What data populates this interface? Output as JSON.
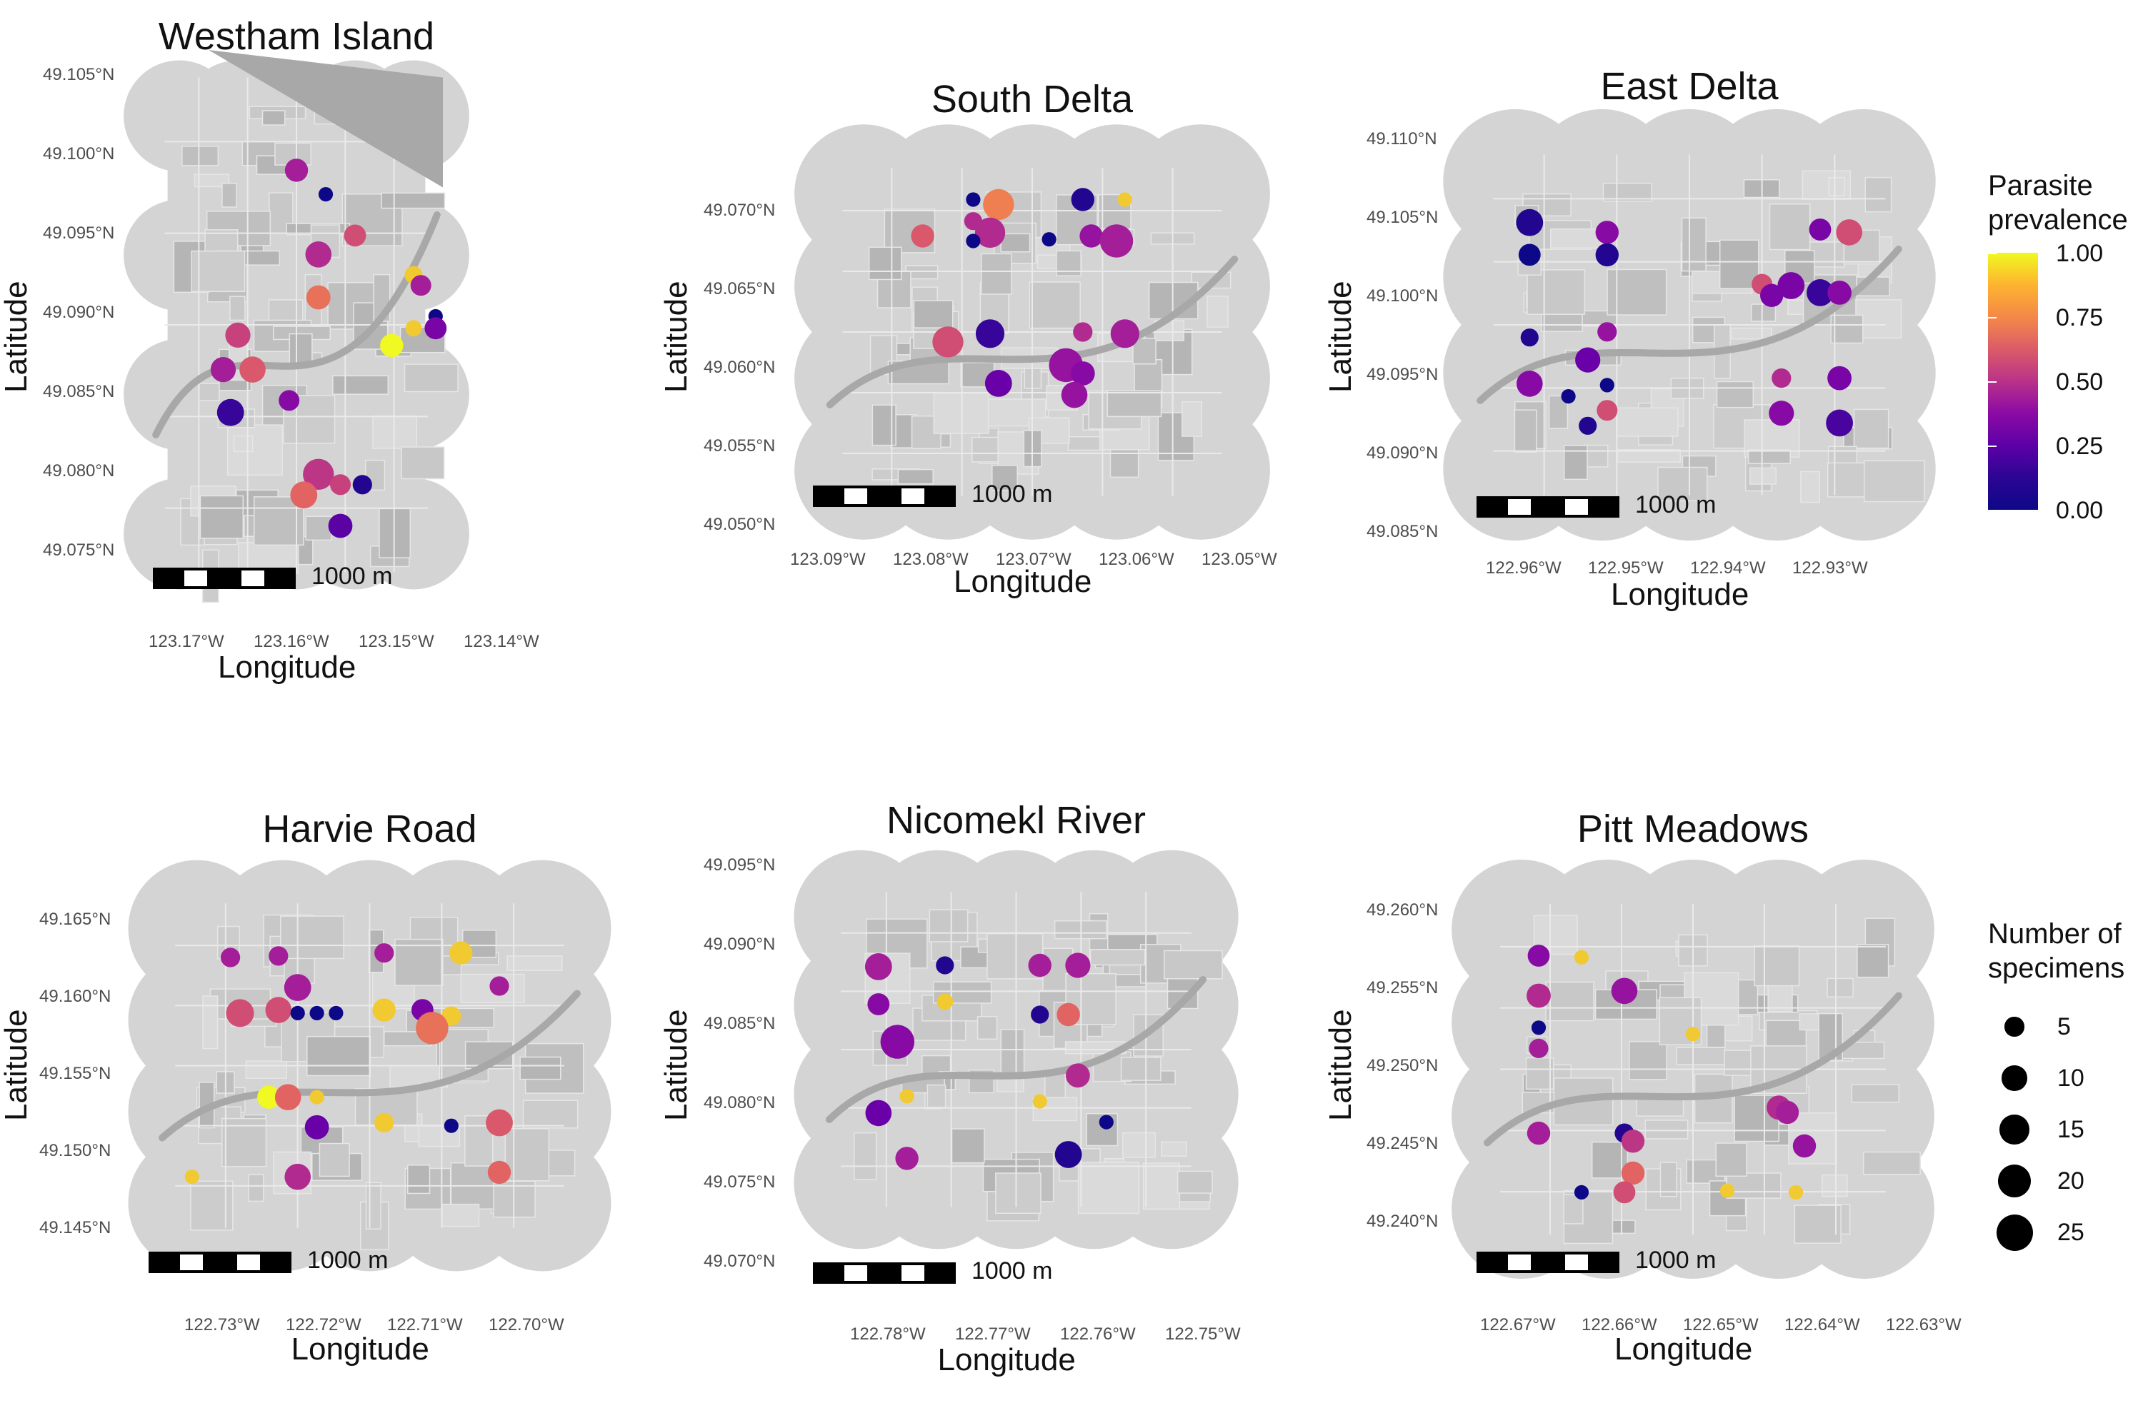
{
  "figure": {
    "legend": {
      "color_title": "Parasite\nprevalence",
      "color_ticks": [
        "1.00",
        "0.75",
        "0.50",
        "0.25",
        "0.00"
      ],
      "size_title": "Number of\nspecimens",
      "size_ticks": [
        "5",
        "10",
        "15",
        "20",
        "25"
      ]
    },
    "axis_labels": {
      "x": "Longitude",
      "y": "Latitude"
    },
    "scale_label": "1000 m",
    "colors": {
      "background": "#ffffff",
      "map_land": "#d4d4d4",
      "map_dark": "#a8a8a8",
      "map_field": "#c2c2c2"
    }
  },
  "chart_data": [
    {
      "type": "scatter",
      "title": "Westham Island",
      "xlabel": "Longitude",
      "ylabel": "Latitude",
      "xticks": [
        "123.17°W",
        "123.16°W",
        "123.15°W",
        "123.14°W"
      ],
      "yticks": [
        "49.105°N",
        "49.100°N",
        "49.095°N",
        "49.090°N",
        "49.085°N",
        "49.080°N",
        "49.075°N"
      ],
      "xlim": [
        -123.175,
        -123.135
      ],
      "ylim": [
        49.0745,
        49.1065
      ],
      "scale_label": "1000 m",
      "points": [
        {
          "lon": -123.155,
          "lat": 49.0995,
          "n": 8,
          "prev": 0.45
        },
        {
          "lon": -123.151,
          "lat": 49.0981,
          "n": 2,
          "prev": 0.0
        },
        {
          "lon": -123.152,
          "lat": 49.0946,
          "n": 11,
          "prev": 0.5
        },
        {
          "lon": -123.147,
          "lat": 49.0957,
          "n": 7,
          "prev": 0.65
        },
        {
          "lon": -123.152,
          "lat": 49.0921,
          "n": 9,
          "prev": 0.8
        },
        {
          "lon": -123.139,
          "lat": 49.0934,
          "n": 4,
          "prev": 0.95
        },
        {
          "lon": -123.138,
          "lat": 49.0928,
          "n": 6,
          "prev": 0.45
        },
        {
          "lon": -123.136,
          "lat": 49.091,
          "n": 2,
          "prev": 0.0
        },
        {
          "lon": -123.139,
          "lat": 49.0903,
          "n": 3,
          "prev": 0.95
        },
        {
          "lon": -123.136,
          "lat": 49.0903,
          "n": 7,
          "prev": 0.3
        },
        {
          "lon": -123.142,
          "lat": 49.0893,
          "n": 8,
          "prev": 1.0
        },
        {
          "lon": -123.163,
          "lat": 49.0899,
          "n": 10,
          "prev": 0.6
        },
        {
          "lon": -123.161,
          "lat": 49.0879,
          "n": 11,
          "prev": 0.7
        },
        {
          "lon": -123.165,
          "lat": 49.0879,
          "n": 10,
          "prev": 0.45
        },
        {
          "lon": -123.164,
          "lat": 49.0854,
          "n": 12,
          "prev": 0.1
        },
        {
          "lon": -123.156,
          "lat": 49.0861,
          "n": 6,
          "prev": 0.35
        },
        {
          "lon": -123.152,
          "lat": 49.0818,
          "n": 17,
          "prev": 0.55
        },
        {
          "lon": -123.149,
          "lat": 49.0812,
          "n": 6,
          "prev": 0.6
        },
        {
          "lon": -123.146,
          "lat": 49.0812,
          "n": 5,
          "prev": 0.05
        },
        {
          "lon": -123.154,
          "lat": 49.0806,
          "n": 12,
          "prev": 0.75
        },
        {
          "lon": -123.149,
          "lat": 49.0788,
          "n": 9,
          "prev": 0.2
        }
      ]
    },
    {
      "type": "scatter",
      "title": "South Delta",
      "xlabel": "Longitude",
      "ylabel": "Latitude",
      "xticks": [
        "123.09°W",
        "123.08°W",
        "123.07°W",
        "123.06°W",
        "123.05°W"
      ],
      "yticks": [
        "49.070°N",
        "49.065°N",
        "49.060°N",
        "49.055°N",
        "49.050°N"
      ],
      "xlim": [
        -123.095,
        -123.045
      ],
      "ylim": [
        49.0495,
        49.0715
      ],
      "scale_label": "1000 m",
      "points": [
        {
          "lon": -123.077,
          "lat": 49.0685,
          "n": 2,
          "prev": 0.0
        },
        {
          "lon": -123.074,
          "lat": 49.0682,
          "n": 17,
          "prev": 0.85
        },
        {
          "lon": -123.064,
          "lat": 49.0685,
          "n": 8,
          "prev": 0.05
        },
        {
          "lon": -123.059,
          "lat": 49.0685,
          "n": 2,
          "prev": 0.95
        },
        {
          "lon": -123.077,
          "lat": 49.0672,
          "n": 4,
          "prev": 0.5
        },
        {
          "lon": -123.075,
          "lat": 49.0665,
          "n": 16,
          "prev": 0.5
        },
        {
          "lon": -123.083,
          "lat": 49.0663,
          "n": 8,
          "prev": 0.7
        },
        {
          "lon": -123.077,
          "lat": 49.066,
          "n": 2,
          "prev": 0.0
        },
        {
          "lon": -123.068,
          "lat": 49.0661,
          "n": 2,
          "prev": 0.0
        },
        {
          "lon": -123.063,
          "lat": 49.0663,
          "n": 8,
          "prev": 0.4
        },
        {
          "lon": -123.06,
          "lat": 49.066,
          "n": 20,
          "prev": 0.45
        },
        {
          "lon": -123.08,
          "lat": 49.0599,
          "n": 17,
          "prev": 0.65
        },
        {
          "lon": -123.075,
          "lat": 49.0604,
          "n": 14,
          "prev": 0.1
        },
        {
          "lon": -123.064,
          "lat": 49.0605,
          "n": 5,
          "prev": 0.5
        },
        {
          "lon": -123.059,
          "lat": 49.0604,
          "n": 14,
          "prev": 0.45
        },
        {
          "lon": -123.066,
          "lat": 49.0585,
          "n": 21,
          "prev": 0.4
        },
        {
          "lon": -123.064,
          "lat": 49.058,
          "n": 9,
          "prev": 0.35
        },
        {
          "lon": -123.074,
          "lat": 49.0574,
          "n": 12,
          "prev": 0.25
        },
        {
          "lon": -123.065,
          "lat": 49.0567,
          "n": 11,
          "prev": 0.4
        }
      ]
    },
    {
      "type": "scatter",
      "title": "East Delta",
      "xlabel": "Longitude",
      "ylabel": "Latitude",
      "xticks": [
        "122.96°W",
        "122.95°W",
        "122.94°W",
        "122.93°W"
      ],
      "yticks": [
        "49.110°N",
        "49.105°N",
        "49.100°N",
        "49.095°N",
        "49.090°N",
        "49.085°N"
      ],
      "xlim": [
        -122.967,
        -122.922
      ],
      "ylim": [
        49.0845,
        49.1115
      ],
      "scale_label": "1000 m",
      "points": [
        {
          "lon": -122.961,
          "lat": 49.1053,
          "n": 12,
          "prev": 0.05
        },
        {
          "lon": -122.953,
          "lat": 49.1046,
          "n": 8,
          "prev": 0.35
        },
        {
          "lon": -122.931,
          "lat": 49.1048,
          "n": 7,
          "prev": 0.3
        },
        {
          "lon": -122.928,
          "lat": 49.1046,
          "n": 11,
          "prev": 0.65
        },
        {
          "lon": -122.961,
          "lat": 49.103,
          "n": 7,
          "prev": 0.0
        },
        {
          "lon": -122.953,
          "lat": 49.103,
          "n": 8,
          "prev": 0.05
        },
        {
          "lon": -122.937,
          "lat": 49.1009,
          "n": 6,
          "prev": 0.65
        },
        {
          "lon": -122.936,
          "lat": 49.1001,
          "n": 8,
          "prev": 0.3
        },
        {
          "lon": -122.934,
          "lat": 49.1008,
          "n": 12,
          "prev": 0.3
        },
        {
          "lon": -122.931,
          "lat": 49.1003,
          "n": 12,
          "prev": 0.1
        },
        {
          "lon": -122.929,
          "lat": 49.1003,
          "n": 9,
          "prev": 0.35
        },
        {
          "lon": -122.961,
          "lat": 49.0971,
          "n": 4,
          "prev": 0.05
        },
        {
          "lon": -122.953,
          "lat": 49.0975,
          "n": 5,
          "prev": 0.4
        },
        {
          "lon": -122.955,
          "lat": 49.0955,
          "n": 10,
          "prev": 0.25
        },
        {
          "lon": -122.935,
          "lat": 49.0942,
          "n": 5,
          "prev": 0.5
        },
        {
          "lon": -122.929,
          "lat": 49.0942,
          "n": 9,
          "prev": 0.3
        },
        {
          "lon": -122.961,
          "lat": 49.0938,
          "n": 11,
          "prev": 0.35
        },
        {
          "lon": -122.953,
          "lat": 49.0937,
          "n": 2,
          "prev": 0.0
        },
        {
          "lon": -122.957,
          "lat": 49.0929,
          "n": 2,
          "prev": 0.0
        },
        {
          "lon": -122.953,
          "lat": 49.0919,
          "n": 6,
          "prev": 0.65
        },
        {
          "lon": -122.935,
          "lat": 49.0917,
          "n": 10,
          "prev": 0.35
        },
        {
          "lon": -122.929,
          "lat": 49.091,
          "n": 12,
          "prev": 0.15
        },
        {
          "lon": -122.955,
          "lat": 49.0908,
          "n": 4,
          "prev": 0.05
        }
      ]
    },
    {
      "type": "scatter",
      "title": "Harvie Road",
      "xlabel": "Longitude",
      "ylabel": "Latitude",
      "xticks": [
        "122.73°W",
        "122.72°W",
        "122.71°W",
        "122.70°W"
      ],
      "yticks": [
        "49.165°N",
        "49.160°N",
        "49.155°N",
        "49.150°N",
        "49.145°N"
      ],
      "xlim": [
        -122.737,
        -122.692
      ],
      "ylim": [
        49.1435,
        49.1675
      ],
      "scale_label": "1000 m",
      "points": [
        {
          "lon": -122.729,
          "lat": 49.1627,
          "n": 5,
          "prev": 0.45
        },
        {
          "lon": -122.724,
          "lat": 49.1628,
          "n": 5,
          "prev": 0.45
        },
        {
          "lon": -122.713,
          "lat": 49.163,
          "n": 5,
          "prev": 0.45
        },
        {
          "lon": -122.705,
          "lat": 49.163,
          "n": 8,
          "prev": 0.95
        },
        {
          "lon": -122.701,
          "lat": 49.1608,
          "n": 5,
          "prev": 0.45
        },
        {
          "lon": -122.722,
          "lat": 49.1607,
          "n": 12,
          "prev": 0.45
        },
        {
          "lon": -122.728,
          "lat": 49.159,
          "n": 13,
          "prev": 0.65
        },
        {
          "lon": -122.724,
          "lat": 49.1592,
          "n": 11,
          "prev": 0.65
        },
        {
          "lon": -122.722,
          "lat": 49.159,
          "n": 2,
          "prev": 0.0
        },
        {
          "lon": -122.72,
          "lat": 49.159,
          "n": 2,
          "prev": 0.0
        },
        {
          "lon": -122.718,
          "lat": 49.159,
          "n": 2,
          "prev": 0.0
        },
        {
          "lon": -122.713,
          "lat": 49.1592,
          "n": 8,
          "prev": 0.95
        },
        {
          "lon": -122.709,
          "lat": 49.1592,
          "n": 7,
          "prev": 0.3
        },
        {
          "lon": -122.706,
          "lat": 49.1588,
          "n": 5,
          "prev": 0.95
        },
        {
          "lon": -122.708,
          "lat": 49.158,
          "n": 19,
          "prev": 0.8
        },
        {
          "lon": -122.725,
          "lat": 49.1534,
          "n": 8,
          "prev": 1.0
        },
        {
          "lon": -122.723,
          "lat": 49.1534,
          "n": 11,
          "prev": 0.75
        },
        {
          "lon": -122.72,
          "lat": 49.1534,
          "n": 2,
          "prev": 0.95
        },
        {
          "lon": -122.72,
          "lat": 49.1514,
          "n": 9,
          "prev": 0.25
        },
        {
          "lon": -122.713,
          "lat": 49.1517,
          "n": 5,
          "prev": 0.95
        },
        {
          "lon": -122.706,
          "lat": 49.1515,
          "n": 2,
          "prev": 0.0
        },
        {
          "lon": -122.701,
          "lat": 49.1517,
          "n": 12,
          "prev": 0.7
        },
        {
          "lon": -122.733,
          "lat": 49.1481,
          "n": 2,
          "prev": 0.95
        },
        {
          "lon": -122.722,
          "lat": 49.1481,
          "n": 11,
          "prev": 0.5
        },
        {
          "lon": -122.701,
          "lat": 49.1484,
          "n": 8,
          "prev": 0.75
        }
      ]
    },
    {
      "type": "scatter",
      "title": "Nicomekl River",
      "xlabel": "Longitude",
      "ylabel": "Latitude",
      "xticks": [
        "122.78°W",
        "122.77°W",
        "122.76°W",
        "122.75°W"
      ],
      "yticks": [
        "49.095°N",
        "49.090°N",
        "49.085°N",
        "49.080°N",
        "49.075°N",
        "49.070°N"
      ],
      "xlim": [
        -122.787,
        -122.746
      ],
      "ylim": [
        49.0695,
        49.0965
      ],
      "scale_label": "1000 m",
      "points": [
        {
          "lon": -122.781,
          "lat": 49.0894,
          "n": 12,
          "prev": 0.45
        },
        {
          "lon": -122.774,
          "lat": 49.0895,
          "n": 4,
          "prev": 0.05
        },
        {
          "lon": -122.764,
          "lat": 49.0895,
          "n": 8,
          "prev": 0.45
        },
        {
          "lon": -122.76,
          "lat": 49.0895,
          "n": 10,
          "prev": 0.45
        },
        {
          "lon": -122.781,
          "lat": 49.0865,
          "n": 7,
          "prev": 0.35
        },
        {
          "lon": -122.774,
          "lat": 49.0867,
          "n": 3,
          "prev": 0.95
        },
        {
          "lon": -122.764,
          "lat": 49.0857,
          "n": 4,
          "prev": 0.05
        },
        {
          "lon": -122.761,
          "lat": 49.0857,
          "n": 8,
          "prev": 0.75
        },
        {
          "lon": -122.779,
          "lat": 49.0836,
          "n": 21,
          "prev": 0.35
        },
        {
          "lon": -122.76,
          "lat": 49.081,
          "n": 9,
          "prev": 0.5
        },
        {
          "lon": -122.778,
          "lat": 49.0794,
          "n": 2,
          "prev": 0.95
        },
        {
          "lon": -122.781,
          "lat": 49.0781,
          "n": 11,
          "prev": 0.25
        },
        {
          "lon": -122.764,
          "lat": 49.079,
          "n": 2,
          "prev": 0.95
        },
        {
          "lon": -122.757,
          "lat": 49.0774,
          "n": 2,
          "prev": 0.0
        },
        {
          "lon": -122.778,
          "lat": 49.0746,
          "n": 8,
          "prev": 0.45
        },
        {
          "lon": -122.761,
          "lat": 49.0749,
          "n": 12,
          "prev": 0.05
        }
      ]
    },
    {
      "type": "scatter",
      "title": "Pitt Meadows",
      "xlabel": "Longitude",
      "ylabel": "Latitude",
      "xticks": [
        "122.67°W",
        "122.66°W",
        "122.65°W",
        "122.64°W",
        "122.63°W"
      ],
      "yticks": [
        "49.260°N",
        "49.255°N",
        "49.250°N",
        "49.245°N",
        "49.240°N"
      ],
      "xlim": [
        -122.675,
        -122.625
      ],
      "ylim": [
        49.2385,
        49.2615
      ],
      "scale_label": "1000 m",
      "points": [
        {
          "lon": -122.668,
          "lat": 49.2571,
          "n": 7,
          "prev": 0.35
        },
        {
          "lon": -122.663,
          "lat": 49.257,
          "n": 2,
          "prev": 0.95
        },
        {
          "lon": -122.658,
          "lat": 49.2549,
          "n": 11,
          "prev": 0.4
        },
        {
          "lon": -122.668,
          "lat": 49.2546,
          "n": 9,
          "prev": 0.5
        },
        {
          "lon": -122.668,
          "lat": 49.2526,
          "n": 2,
          "prev": 0.0
        },
        {
          "lon": -122.668,
          "lat": 49.2513,
          "n": 5,
          "prev": 0.45
        },
        {
          "lon": -122.65,
          "lat": 49.2522,
          "n": 2,
          "prev": 0.95
        },
        {
          "lon": -122.64,
          "lat": 49.2476,
          "n": 9,
          "prev": 0.5
        },
        {
          "lon": -122.639,
          "lat": 49.2473,
          "n": 8,
          "prev": 0.45
        },
        {
          "lon": -122.668,
          "lat": 49.246,
          "n": 8,
          "prev": 0.45
        },
        {
          "lon": -122.658,
          "lat": 49.246,
          "n": 5,
          "prev": 0.05
        },
        {
          "lon": -122.657,
          "lat": 49.2455,
          "n": 8,
          "prev": 0.55
        },
        {
          "lon": -122.637,
          "lat": 49.2452,
          "n": 8,
          "prev": 0.4
        },
        {
          "lon": -122.657,
          "lat": 49.2435,
          "n": 8,
          "prev": 0.75
        },
        {
          "lon": -122.658,
          "lat": 49.2423,
          "n": 7,
          "prev": 0.65
        },
        {
          "lon": -122.663,
          "lat": 49.2423,
          "n": 2,
          "prev": 0.0
        },
        {
          "lon": -122.646,
          "lat": 49.2424,
          "n": 2,
          "prev": 0.95
        },
        {
          "lon": -122.638,
          "lat": 49.2423,
          "n": 2,
          "prev": 0.95
        }
      ]
    }
  ]
}
